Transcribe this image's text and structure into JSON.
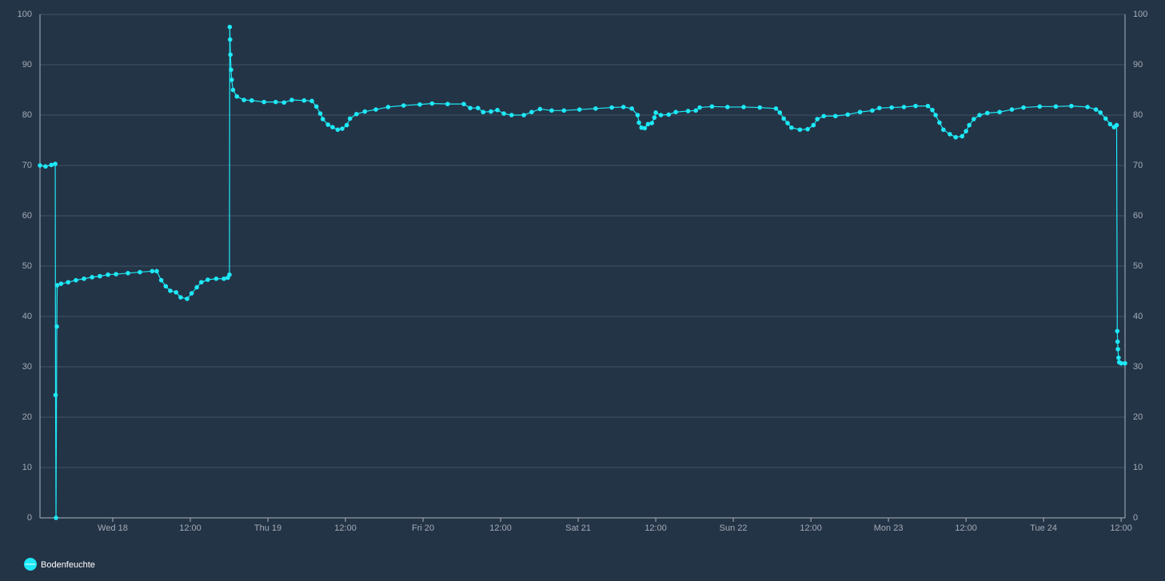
{
  "chart_data": {
    "type": "line",
    "x": [
      -11.26,
      -10.4,
      -9.5,
      -8.9,
      -8.85,
      -8.78,
      -8.66,
      -8.6,
      -8.0,
      -6.9,
      -5.7,
      -4.45,
      -3.2,
      -2.0,
      -0.74,
      0.5,
      2.35,
      4.2,
      6.1,
      6.8,
      7.5,
      8.2,
      8.9,
      9.8,
      10.5,
      11.5,
      12.2,
      13.0,
      13.7,
      14.7,
      16.0,
      17.2,
      17.8,
      18.05,
      18.1,
      18.15,
      18.2,
      18.3,
      18.4,
      18.6,
      19.2,
      20.3,
      21.5,
      23.4,
      25.2,
      26.5,
      27.7,
      29.6,
      30.8,
      31.5,
      32.1,
      32.5,
      33.3,
      34.0,
      34.8,
      35.5,
      36.2,
      36.7,
      37.7,
      39.0,
      40.7,
      42.6,
      45.0,
      47.5,
      49.4,
      51.8,
      54.3,
      55.3,
      56.5,
      57.3,
      58.5,
      59.5,
      60.5,
      61.7,
      63.6,
      64.8,
      66.1,
      67.9,
      69.8,
      72.2,
      74.7,
      77.2,
      79.0,
      80.3,
      81.2,
      81.4,
      81.8,
      82.3,
      82.8,
      83.4,
      83.8,
      84.0,
      84.8,
      86.0,
      87.1,
      89.0,
      90.2,
      90.8,
      92.7,
      95.1,
      97.6,
      100.1,
      102.6,
      103.2,
      103.8,
      104.4,
      105.0,
      106.3,
      107.5,
      108.4,
      109.0,
      110.0,
      111.8,
      113.7,
      115.6,
      117.5,
      118.6,
      120.5,
      122.4,
      124.2,
      126.1,
      126.8,
      127.3,
      127.9,
      128.5,
      129.5,
      130.4,
      131.4,
      132.0,
      132.5,
      133.2,
      134.1,
      135.3,
      137.2,
      139.1,
      140.9,
      143.4,
      145.9,
      148.3,
      150.8,
      152.1,
      152.8,
      153.6,
      154.3,
      154.9,
      155.3,
      155.4,
      155.45,
      155.5,
      155.6,
      155.7,
      156.0,
      156.6
    ],
    "series": [
      {
        "name": "Bodenfeuchte",
        "color": "#1de9f6",
        "values": [
          70,
          69.8,
          70.1,
          70.3,
          24.4,
          0,
          38,
          46.2,
          46.5,
          46.8,
          47.2,
          47.5,
          47.8,
          48.0,
          48.3,
          48.4,
          48.6,
          48.8,
          49.0,
          49.0,
          47.2,
          46.0,
          45.1,
          44.8,
          43.8,
          43.5,
          44.6,
          45.8,
          46.8,
          47.3,
          47.5,
          47.5,
          47.7,
          48.3,
          97.5,
          95,
          92,
          89,
          87,
          85,
          83.7,
          83.0,
          82.9,
          82.6,
          82.6,
          82.5,
          83.0,
          82.9,
          82.8,
          81.7,
          80.3,
          79.2,
          78.1,
          77.6,
          77.1,
          77.3,
          78.0,
          79.3,
          80.2,
          80.7,
          81.1,
          81.6,
          81.9,
          82.1,
          82.3,
          82.2,
          82.2,
          81.4,
          81.4,
          80.6,
          80.7,
          81.0,
          80.3,
          80.0,
          80.0,
          80.6,
          81.2,
          80.9,
          80.9,
          81.1,
          81.3,
          81.5,
          81.6,
          81.3,
          80.0,
          78.5,
          77.5,
          77.4,
          78.2,
          78.4,
          79.5,
          80.5,
          80.0,
          80.1,
          80.6,
          80.8,
          80.9,
          81.5,
          81.7,
          81.6,
          81.6,
          81.5,
          81.3,
          80.5,
          79.3,
          78.4,
          77.5,
          77.1,
          77.2,
          78.0,
          79.2,
          79.8,
          79.8,
          80.1,
          80.6,
          80.9,
          81.4,
          81.5,
          81.6,
          81.8,
          81.8,
          81.0,
          80.0,
          78.5,
          77.1,
          76.2,
          75.6,
          75.8,
          76.8,
          78.0,
          79.2,
          80.0,
          80.4,
          80.6,
          81.1,
          81.5,
          81.7,
          81.7,
          81.8,
          81.6,
          81.1,
          80.5,
          79.3,
          78.2,
          77.6,
          78.0,
          37.1,
          35,
          33.5,
          31.8,
          30.9,
          30.7,
          30.7
        ]
      }
    ],
    "xlim": [
      -11.26,
      156.6
    ],
    "xticks": [
      {
        "value": 0,
        "label": "Wed 18"
      },
      {
        "value": 12,
        "label": "12:00"
      },
      {
        "value": 24,
        "label": "Thu 19"
      },
      {
        "value": 36,
        "label": "12:00"
      },
      {
        "value": 48,
        "label": "Fri 20"
      },
      {
        "value": 60,
        "label": "12:00"
      },
      {
        "value": 72,
        "label": "Sat 21"
      },
      {
        "value": 84,
        "label": "12:00"
      },
      {
        "value": 96,
        "label": "Sun 22"
      },
      {
        "value": 108,
        "label": "12:00"
      },
      {
        "value": 120,
        "label": "Mon 23"
      },
      {
        "value": 132,
        "label": "12:00"
      },
      {
        "value": 144,
        "label": "Tue 24"
      },
      {
        "value": 156,
        "label": "12:00"
      }
    ],
    "ylim": [
      0,
      100
    ],
    "yticks": [
      0,
      10,
      20,
      30,
      40,
      50,
      60,
      70,
      80,
      90,
      100
    ],
    "grid": true,
    "legend": "bottom-left"
  }
}
